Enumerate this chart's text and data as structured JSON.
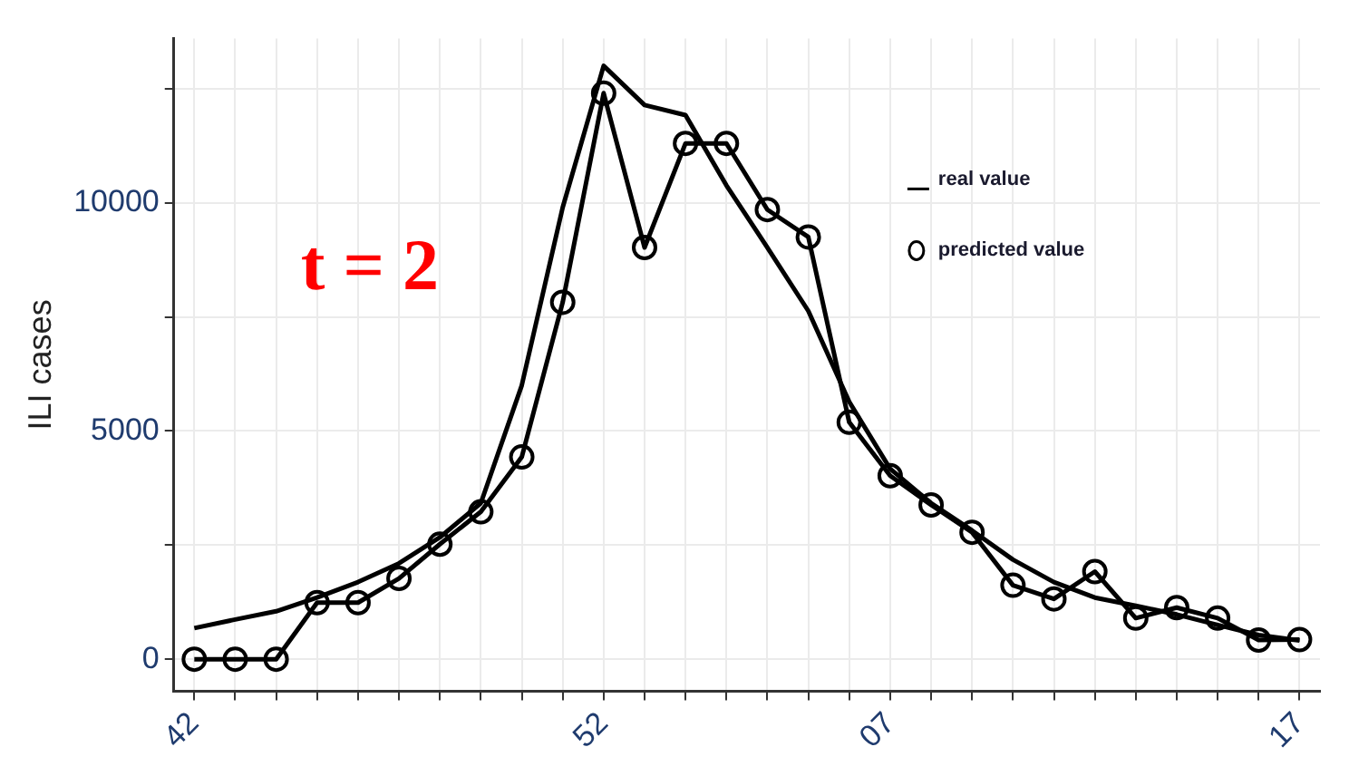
{
  "chart_data": {
    "type": "line",
    "ylabel": "ILI cases",
    "annotations": [
      "t = 2"
    ],
    "categories": [
      "42",
      null,
      null,
      null,
      null,
      null,
      null,
      null,
      null,
      null,
      "52",
      null,
      null,
      null,
      null,
      null,
      null,
      "07",
      null,
      null,
      null,
      null,
      null,
      null,
      null,
      null,
      null,
      "17"
    ],
    "series": [
      {
        "name": "real value",
        "color": "#000000",
        "marker": "none",
        "values": [
          680,
          870,
          1050,
          1350,
          1690,
          2100,
          2670,
          3420,
          6000,
          9900,
          13000,
          12140,
          11920,
          10380,
          9020,
          7630,
          5640,
          4170,
          3420,
          2820,
          2180,
          1690,
          1350,
          1170,
          980,
          750,
          530,
          410
        ]
      },
      {
        "name": "predicted value",
        "color": "#000000",
        "marker": "circle",
        "values": [
          0,
          0,
          0,
          1240,
          1240,
          1770,
          2520,
          3230,
          4430,
          7820,
          12400,
          9020,
          11300,
          11300,
          9850,
          9250,
          5190,
          4020,
          3380,
          2780,
          1620,
          1320,
          1920,
          900,
          1130,
          900,
          420,
          430
        ]
      }
    ],
    "ylim": [
      -700,
      13600
    ],
    "yticks": [
      0,
      {
        "value": 2500,
        "label": null
      },
      5000,
      {
        "value": 7500,
        "label": null
      },
      10000,
      {
        "value": 12500,
        "label": null
      }
    ],
    "grid": true,
    "legend": "top right"
  }
}
